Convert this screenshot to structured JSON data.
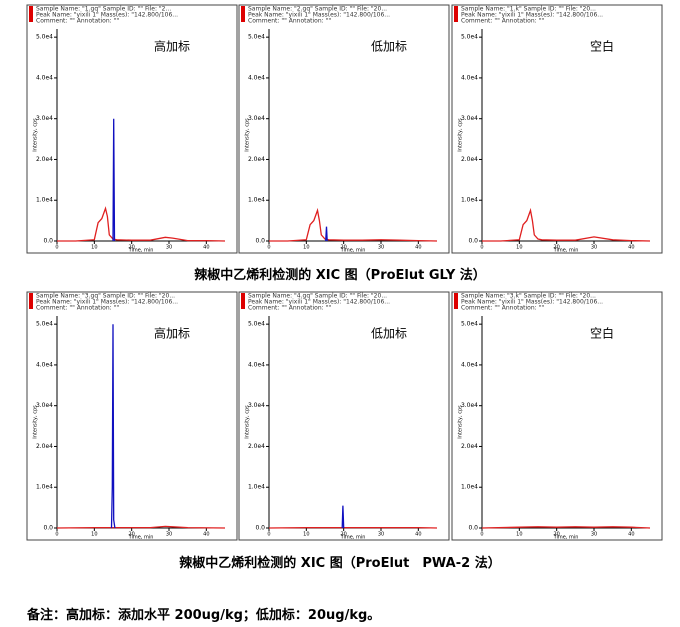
{
  "chart_data": [
    {
      "type": "line",
      "header_lines": [
        "Sample Name: \"1.gq\"   Sample ID: \"\"   File: \"2...",
        "Peak Name: \"yixili 1\"   Mass(es): \"142.800/106...",
        "Comment: \"\"   Annotation: \"\""
      ],
      "annotation": "高加标",
      "xlabel": "Time, min",
      "ylabel": "Intensity, cps",
      "xlim": [
        0,
        45
      ],
      "xticks": [
        0,
        10,
        20,
        30,
        40
      ],
      "ylim": [
        0,
        52000
      ],
      "yticks": [
        {
          "value": 0,
          "label": "0.0"
        },
        {
          "value": 10000,
          "label": "1.0e4"
        },
        {
          "value": 20000,
          "label": "2.0e4"
        },
        {
          "value": 30000,
          "label": "3.0e4"
        },
        {
          "value": 40000,
          "label": "4.0e4"
        },
        {
          "value": 50000,
          "label": "5.0e4"
        }
      ],
      "series": [
        {
          "color": "#e02020",
          "x": [
            0,
            5,
            10,
            11,
            12,
            13,
            13.5,
            14,
            15,
            16,
            20,
            25,
            29,
            31,
            35,
            40,
            45
          ],
          "values": [
            0,
            0,
            300,
            4500,
            5500,
            8000,
            6000,
            1500,
            500,
            300,
            200,
            200,
            900,
            700,
            100,
            100,
            0
          ]
        },
        {
          "color": "#1010c0",
          "x": [
            15,
            15.2,
            15.4
          ],
          "values": [
            0,
            30000,
            0
          ]
        }
      ]
    },
    {
      "type": "line",
      "header_lines": [
        "Sample Name: \"2.gq\"   Sample ID: \"\"   File: \"20...",
        "Peak Name: \"yixili 1\"   Mass(es): \"142.800/106...",
        "Comment: \"\"   Annotation: \"\""
      ],
      "annotation": "低加标",
      "xlabel": "Time, min",
      "ylabel": "Intensity, cps",
      "xlim": [
        0,
        45
      ],
      "xticks": [
        0,
        10,
        20,
        30,
        40
      ],
      "ylim": [
        0,
        52000
      ],
      "yticks": [
        {
          "value": 0,
          "label": "0.0"
        },
        {
          "value": 10000,
          "label": "1.0e4"
        },
        {
          "value": 20000,
          "label": "2.0e4"
        },
        {
          "value": 30000,
          "label": "3.0e4"
        },
        {
          "value": 40000,
          "label": "4.0e4"
        },
        {
          "value": 50000,
          "label": "5.0e4"
        }
      ],
      "series": [
        {
          "color": "#e02020",
          "x": [
            0,
            5,
            10,
            11,
            12,
            13,
            13.5,
            14,
            15,
            16,
            20,
            25,
            30,
            35,
            40,
            45
          ],
          "values": [
            0,
            0,
            300,
            4000,
            5000,
            7500,
            5000,
            1500,
            500,
            300,
            200,
            200,
            300,
            200,
            100,
            0
          ]
        },
        {
          "color": "#1010c0",
          "x": [
            15.2,
            15.4,
            15.6
          ],
          "values": [
            0,
            3500,
            0
          ]
        }
      ]
    },
    {
      "type": "line",
      "header_lines": [
        "Sample Name: \"1.k\"   Sample ID: \"\"   File: \"20...",
        "Peak Name: \"yixili 1\"   Mass(es): \"142.800/106...",
        "Comment: \"\"   Annotation: \"\""
      ],
      "annotation": "空白",
      "xlabel": "Time, min",
      "ylabel": "Intensity, cps",
      "xlim": [
        0,
        45
      ],
      "xticks": [
        0,
        10,
        20,
        30,
        40
      ],
      "ylim": [
        0,
        52000
      ],
      "yticks": [
        {
          "value": 0,
          "label": "0.0"
        },
        {
          "value": 10000,
          "label": "1.0e4"
        },
        {
          "value": 20000,
          "label": "2.0e4"
        },
        {
          "value": 30000,
          "label": "3.0e4"
        },
        {
          "value": 40000,
          "label": "4.0e4"
        },
        {
          "value": 50000,
          "label": "5.0e4"
        }
      ],
      "series": [
        {
          "color": "#e02020",
          "x": [
            0,
            5,
            10,
            11,
            12,
            13,
            13.5,
            14,
            15,
            16,
            20,
            25,
            30,
            35,
            40,
            45
          ],
          "values": [
            0,
            0,
            300,
            4000,
            5000,
            7500,
            5000,
            1500,
            500,
            300,
            200,
            200,
            1000,
            300,
            100,
            0
          ]
        }
      ]
    },
    {
      "type": "line",
      "header_lines": [
        "Sample Name: \"3.gq\"   Sample ID: \"\"   File: \"20...",
        "Peak Name: \"yixili 1\"   Mass(es): \"142.800/106...",
        "Comment: \"\"   Annotation: \"\""
      ],
      "annotation": "高加标",
      "xlabel": "Time, min",
      "ylabel": "Intensity, cps",
      "xlim": [
        0,
        45
      ],
      "xticks": [
        0,
        10,
        20,
        30,
        40
      ],
      "ylim": [
        0,
        52000
      ],
      "yticks": [
        {
          "value": 0,
          "label": "0.0"
        },
        {
          "value": 10000,
          "label": "1.0e4"
        },
        {
          "value": 20000,
          "label": "2.0e4"
        },
        {
          "value": 30000,
          "label": "3.0e4"
        },
        {
          "value": 40000,
          "label": "4.0e4"
        },
        {
          "value": 50000,
          "label": "5.0e4"
        }
      ],
      "series": [
        {
          "color": "#e02020",
          "x": [
            0,
            10,
            20,
            25,
            29,
            31,
            35,
            45
          ],
          "values": [
            0,
            100,
            100,
            100,
            400,
            300,
            100,
            0
          ]
        },
        {
          "color": "#1010c0",
          "x": [
            14.6,
            14.8,
            15,
            15.2,
            15.5
          ],
          "values": [
            0,
            10000,
            50000,
            2000,
            0
          ]
        }
      ]
    },
    {
      "type": "line",
      "header_lines": [
        "Sample Name: \"4.gq\"   Sample ID: \"\"   File: \"20...",
        "Peak Name: \"yixili 1\"   Mass(es): \"142.800/106...",
        "Comment: \"\"   Annotation: \"\""
      ],
      "annotation": "低加标",
      "xlabel": "Time, min",
      "ylabel": "Intensity, cps",
      "xlim": [
        0,
        45
      ],
      "xticks": [
        0,
        10,
        20,
        30,
        40
      ],
      "ylim": [
        0,
        52000
      ],
      "yticks": [
        {
          "value": 0,
          "label": "0.0"
        },
        {
          "value": 10000,
          "label": "1.0e4"
        },
        {
          "value": 20000,
          "label": "2.0e4"
        },
        {
          "value": 30000,
          "label": "3.0e4"
        },
        {
          "value": 40000,
          "label": "4.0e4"
        },
        {
          "value": 50000,
          "label": "5.0e4"
        }
      ],
      "series": [
        {
          "color": "#e02020",
          "x": [
            0,
            10,
            20,
            30,
            40,
            45
          ],
          "values": [
            0,
            100,
            100,
            100,
            100,
            0
          ]
        },
        {
          "color": "#1010c0",
          "x": [
            19.6,
            19.8,
            20
          ],
          "values": [
            0,
            5500,
            0
          ]
        }
      ]
    },
    {
      "type": "line",
      "header_lines": [
        "Sample Name: \"3.k\"   Sample ID: \"\"   File: \"20...",
        "Peak Name: \"yixili 1\"   Mass(es): \"142.800/106...",
        "Comment: \"\"   Annotation: \"\""
      ],
      "annotation": "空白",
      "xlabel": "Time, min",
      "ylabel": "Intensity, cps",
      "xlim": [
        0,
        45
      ],
      "xticks": [
        0,
        10,
        20,
        30,
        40
      ],
      "ylim": [
        0,
        52000
      ],
      "yticks": [
        {
          "value": 0,
          "label": "0.0"
        },
        {
          "value": 10000,
          "label": "1.0e4"
        },
        {
          "value": 20000,
          "label": "2.0e4"
        },
        {
          "value": 30000,
          "label": "3.0e4"
        },
        {
          "value": 40000,
          "label": "4.0e4"
        },
        {
          "value": 50000,
          "label": "5.0e4"
        }
      ],
      "series": [
        {
          "color": "#e02020",
          "x": [
            0,
            10,
            15,
            20,
            25,
            30,
            35,
            40,
            45
          ],
          "values": [
            0,
            200,
            300,
            200,
            300,
            200,
            300,
            200,
            0
          ]
        }
      ]
    }
  ],
  "captions": [
    "辣椒中乙烯利检测的 XIC 图（ProElut GLY 法）",
    "辣椒中乙烯利检测的 XIC 图（ProElut　PWA-2 法）"
  ],
  "note": "备注：高加标：添加水平 200ug/kg；低加标：20ug/kg。"
}
